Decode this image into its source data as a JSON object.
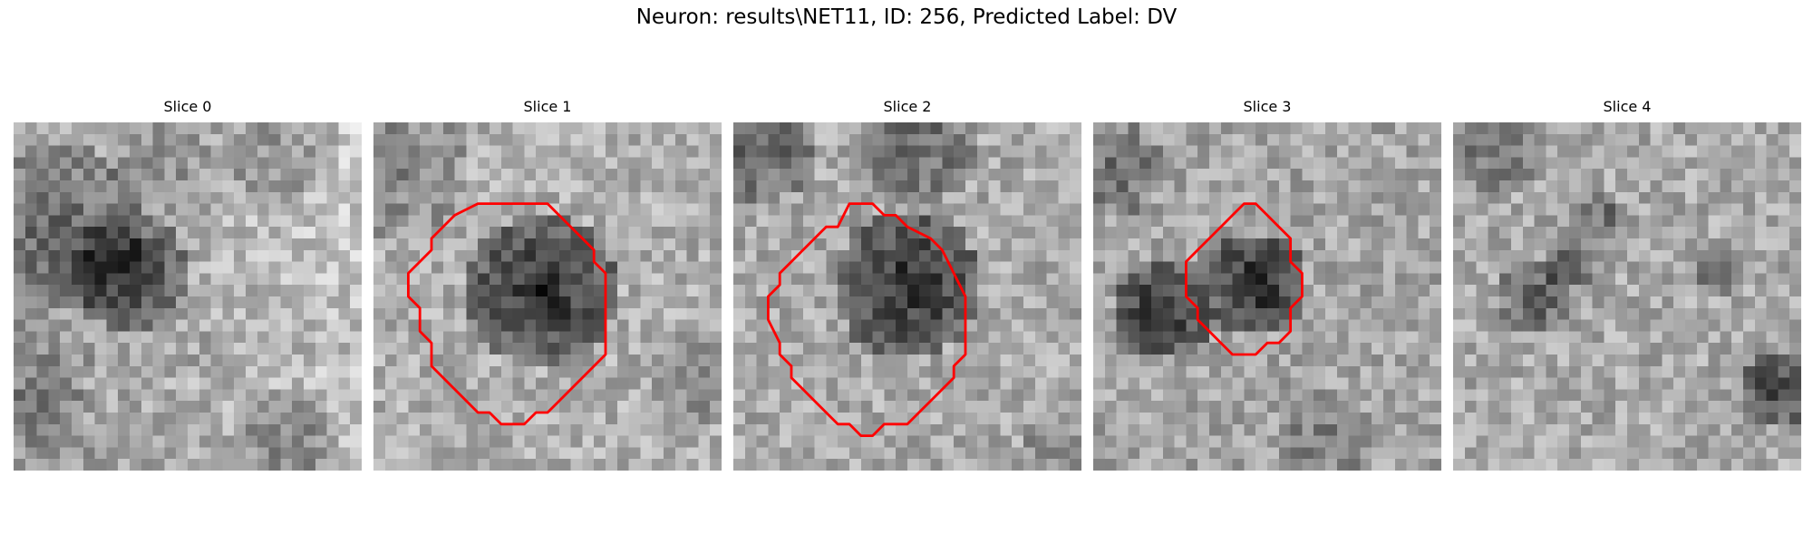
{
  "figure": {
    "title": "Neuron: results\\NET11, ID: 256, Predicted Label: DV"
  },
  "panels": [
    {
      "title": "Slice 0",
      "has_roi": false
    },
    {
      "title": "Slice 1",
      "has_roi": true
    },
    {
      "title": "Slice 2",
      "has_roi": true
    },
    {
      "title": "Slice 3",
      "has_roi": true
    },
    {
      "title": "Slice 4",
      "has_roi": false
    }
  ],
  "style": {
    "roi_color": "#ff0000",
    "colormap": "grayscale"
  }
}
